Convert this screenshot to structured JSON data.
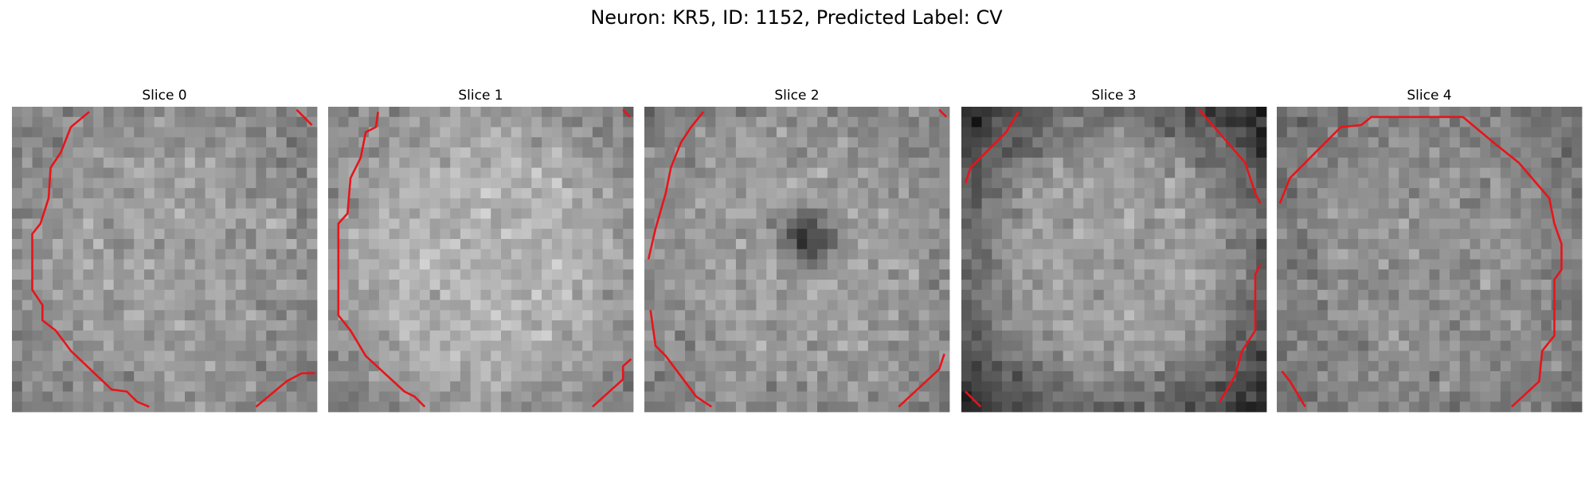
{
  "title": "Neuron: KR5, ID: 1152, Predicted Label: CV",
  "panels": [
    {
      "title": "Slice 0"
    },
    {
      "title": "Slice 1"
    },
    {
      "title": "Slice 2"
    },
    {
      "title": "Slice 3"
    },
    {
      "title": "Slice 4"
    }
  ]
}
